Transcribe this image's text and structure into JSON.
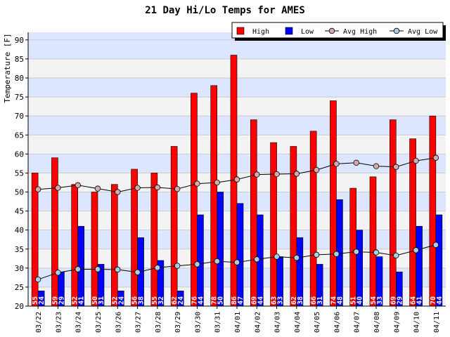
{
  "chart_data": {
    "type": "bar",
    "title": "21 Day Hi/Lo Temps for AMES",
    "xlabel": "",
    "ylabel": "Temperature [F]",
    "ylim": [
      20,
      92
    ],
    "yticks": [
      20,
      25,
      30,
      35,
      40,
      45,
      50,
      55,
      60,
      65,
      70,
      75,
      80,
      85,
      90
    ],
    "grid": true,
    "legend_position": "top-right",
    "categories": [
      "03/22",
      "03/23",
      "03/24",
      "03/25",
      "03/26",
      "03/27",
      "03/28",
      "03/29",
      "03/30",
      "03/31",
      "04/01",
      "04/02",
      "04/03",
      "04/04",
      "04/05",
      "04/06",
      "04/07",
      "04/08",
      "04/09",
      "04/10",
      "04/11"
    ],
    "series": [
      {
        "name": "High",
        "kind": "bar",
        "color": "#ff0000",
        "values": [
          55,
          59,
          52,
          50,
          52,
          56,
          55,
          62,
          76,
          78,
          86,
          69,
          63,
          62,
          66,
          74,
          51,
          54,
          69,
          64,
          70
        ]
      },
      {
        "name": "Low",
        "kind": "bar",
        "color": "#0000ff",
        "values": [
          24,
          29,
          41,
          31,
          24,
          38,
          32,
          24,
          44,
          50,
          47,
          44,
          33,
          38,
          31,
          48,
          40,
          33,
          29,
          41,
          44
        ]
      },
      {
        "name": "Avg High",
        "kind": "line",
        "color": "#d7a8a8",
        "values": [
          50.7,
          51.1,
          51.8,
          50.9,
          50.0,
          51.1,
          51.2,
          50.8,
          52.2,
          52.5,
          53.3,
          54.6,
          54.7,
          54.8,
          55.8,
          57.4,
          57.7,
          56.8,
          56.6,
          58.2,
          59.0
        ]
      },
      {
        "name": "Avg Low",
        "kind": "line",
        "color": "#a8cfe0",
        "values": [
          27.0,
          28.8,
          29.7,
          29.7,
          29.6,
          28.9,
          30.1,
          30.6,
          31.0,
          31.8,
          31.5,
          32.3,
          33.0,
          32.7,
          33.5,
          33.7,
          34.3,
          34.1,
          33.3,
          34.7,
          36.1
        ]
      }
    ]
  }
}
